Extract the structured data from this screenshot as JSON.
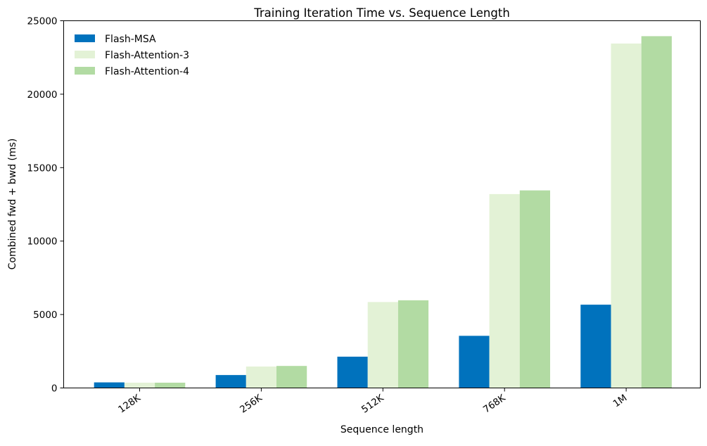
{
  "chart_data": {
    "type": "bar",
    "title": "Training Iteration Time vs. Sequence Length",
    "xlabel": "Sequence length",
    "ylabel": "Combined fwd + bwd (ms)",
    "categories": [
      "128K",
      "256K",
      "512K",
      "768K",
      "1M"
    ],
    "series": [
      {
        "name": "Flash-MSA",
        "color": "#0072bd",
        "values": [
          380,
          880,
          2130,
          3550,
          5670
        ]
      },
      {
        "name": "Flash-Attention-3",
        "color": "#e3f2d6",
        "values": [
          360,
          1460,
          5850,
          13200,
          23450
        ]
      },
      {
        "name": "Flash-Attention-4",
        "color": "#b2dba3",
        "values": [
          360,
          1500,
          5970,
          13450,
          23950
        ]
      }
    ],
    "ylim": [
      0,
      25000
    ],
    "yticks": [
      0,
      5000,
      10000,
      15000,
      20000,
      25000
    ],
    "grid": false,
    "legend_position": "top-left"
  }
}
